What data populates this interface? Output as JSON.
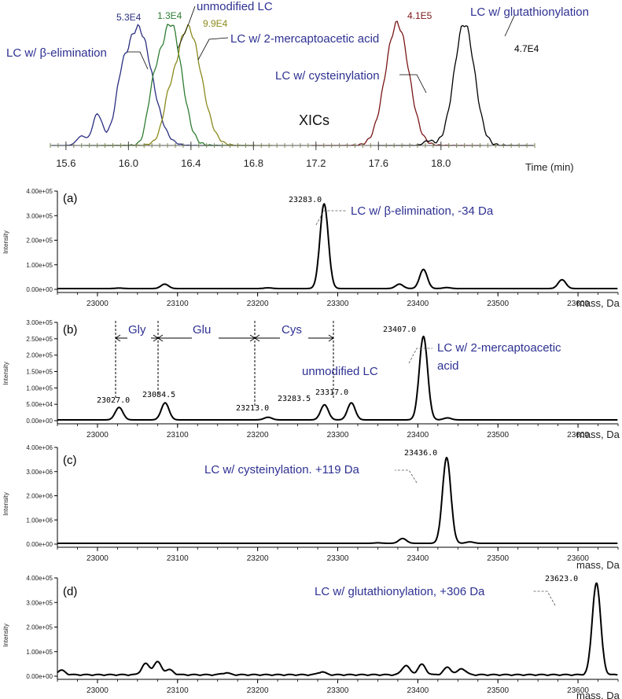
{
  "colors": {
    "blue": "#2b2f80",
    "green": "#2e7d32",
    "olive": "#8a8a1e",
    "maroon": "#7a1717",
    "black": "#000000",
    "annot": "#2e3192"
  },
  "chart_data": [
    {
      "type": "line",
      "title": "XICs",
      "xlabel": "Time (min)",
      "xlim": [
        15.5,
        18.6
      ],
      "xticks": [
        "15.6",
        "16.0",
        "16.4",
        "16.8",
        "17.2",
        "17.6",
        "18.0"
      ],
      "series": [
        {
          "name": "LC w/ β-elimination",
          "peak_x": 16.06,
          "intensity_label": "5.3E4",
          "color": "#2b2f80"
        },
        {
          "name": "unmodified LC",
          "peak_x": 16.27,
          "intensity_label": "1.3E4",
          "color": "#2e7d32"
        },
        {
          "name": "LC w/ 2-mercaptoacetic acid",
          "peak_x": 16.38,
          "intensity_label": "9.9E4",
          "color": "#8a8a1e"
        },
        {
          "name": "LC w/ cysteinylation",
          "peak_x": 17.72,
          "intensity_label": "4.1E5",
          "color": "#7a1717"
        },
        {
          "name": "LC w/ glutathionylation",
          "peak_x": 18.15,
          "intensity_label": "4.7E4",
          "color": "#000000"
        }
      ]
    },
    {
      "panel": "(a)",
      "type": "line",
      "xlabel": "mass, Da",
      "ylabel": "Intensity",
      "xlim": [
        22950,
        23650
      ],
      "ylim": [
        0,
        400000
      ],
      "yticks": [
        "0.00e+00",
        "1.00e+05",
        "2.00e+05",
        "3.00e+05",
        "4.00e+05"
      ],
      "xticks": [
        "23000",
        "23100",
        "23200",
        "23300",
        "23400",
        "23500",
        "23600"
      ],
      "peaks": [
        [
          23027,
          2000
        ],
        [
          23084,
          18000
        ],
        [
          23213,
          3000
        ],
        [
          23283,
          345000
        ],
        [
          23377,
          18000
        ],
        [
          23407,
          78000
        ],
        [
          23436,
          4000
        ],
        [
          23580,
          36000
        ]
      ],
      "peak_labels": [
        "23283.0"
      ],
      "annotation": "LC w/ β-elimination, -34 Da"
    },
    {
      "panel": "(b)",
      "type": "line",
      "xlabel": "mass, Da",
      "ylabel": "Intensity",
      "xlim": [
        22950,
        23650
      ],
      "ylim": [
        0,
        300000
      ],
      "yticks": [
        "0.00e+00",
        "5.00e+04",
        "1.00e+05",
        "1.50e+05",
        "2.00e+05",
        "2.50e+05",
        "3.00e+05"
      ],
      "xticks": [
        "23000",
        "23100",
        "23200",
        "23300",
        "23400",
        "23500",
        "23600"
      ],
      "peaks": [
        [
          23027,
          38000
        ],
        [
          23084.5,
          52000
        ],
        [
          23213,
          8000
        ],
        [
          23283.5,
          46000
        ],
        [
          23317,
          52000
        ],
        [
          23407,
          255000
        ],
        [
          23437,
          6000
        ]
      ],
      "peak_labels": [
        "23027.0",
        "23084.5",
        "23213.0",
        "23283.5",
        "23317.0",
        "23407.0"
      ],
      "gap_labels": [
        "Gly",
        "Glu",
        "Cys"
      ],
      "annotations": [
        "LC w/ 2-mercaptoacetic",
        "acid",
        "unmodified LC"
      ]
    },
    {
      "panel": "(c)",
      "type": "line",
      "xlabel": "mass, Da",
      "ylabel": "Intensity",
      "xlim": [
        22950,
        23650
      ],
      "ylim": [
        0,
        4000000
      ],
      "yticks": [
        "0.00e+00",
        "1.00e+06",
        "2.00e+06",
        "3.00e+06",
        "4.00e+06"
      ],
      "xticks": [
        "23000",
        "23100",
        "23200",
        "23300",
        "23400",
        "23500",
        "23600"
      ],
      "peaks": [
        [
          23350,
          20000
        ],
        [
          23381,
          200000
        ],
        [
          23436,
          3550000
        ],
        [
          23465,
          60000
        ]
      ],
      "peak_labels": [
        "23436.0"
      ],
      "annotation": "LC w/ cysteinylation. +119 Da"
    },
    {
      "panel": "(d)",
      "type": "line",
      "xlabel": "mass, Da",
      "ylabel": "Intensity",
      "xlim": [
        22950,
        23650
      ],
      "ylim": [
        0,
        400000
      ],
      "yticks": [
        "0.00e+00",
        "1.00e+05",
        "2.00e+05",
        "3.00e+05",
        "4.00e+05"
      ],
      "xticks": [
        "23000",
        "23100",
        "23200",
        "23300",
        "23400",
        "23500",
        "23600"
      ],
      "peaks": [
        [
          22955,
          18000
        ],
        [
          23060,
          45000
        ],
        [
          23075,
          52000
        ],
        [
          23090,
          20000
        ],
        [
          23160,
          8000
        ],
        [
          23280,
          12000
        ],
        [
          23385,
          38000
        ],
        [
          23405,
          42000
        ],
        [
          23437,
          30000
        ],
        [
          23455,
          25000
        ],
        [
          23623,
          375000
        ]
      ],
      "peak_labels": [
        "23623.0"
      ],
      "annotation": "LC w/ glutathionylation, +306 Da"
    }
  ]
}
